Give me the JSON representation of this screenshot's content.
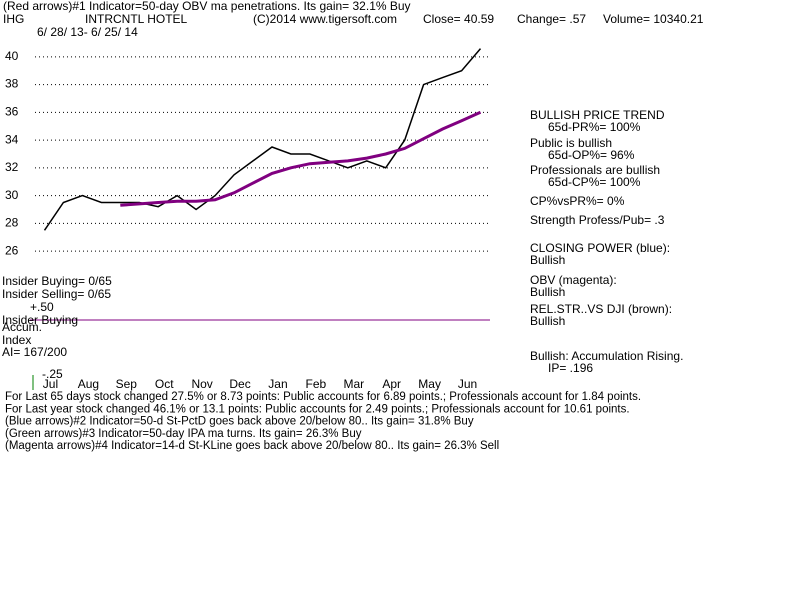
{
  "header": {
    "indicator_line": "(Red arrows)#1 Indicator=50-day OBV ma penetrations.  Its gain= 32.1% Buy",
    "symbol": "IHG",
    "name": "INTRCNTL HOTEL",
    "copyright": "(C)2014 www.tigersoft.com",
    "close": "Close=  40.59",
    "change": "Change= .57",
    "volume": "Volume= 10340.21",
    "date_range": "6/ 28/ 13- 6/ 25/ 14"
  },
  "chart_data": {
    "type": "line",
    "categories": [
      "Jul",
      null,
      "Aug",
      null,
      "Sep",
      null,
      "Oct",
      null,
      "Nov",
      null,
      "Dec",
      null,
      "Jan",
      null,
      "Feb",
      null,
      "Mar",
      null,
      "Apr",
      null,
      "May",
      null,
      "Jun",
      null
    ],
    "series": [
      {
        "color": "#000000",
        "values": [
          27.5,
          29.5,
          30,
          29.5,
          29.5,
          29.5,
          29.2,
          30,
          29,
          30,
          31.5,
          32.5,
          33.5,
          33,
          33,
          32.5,
          32,
          32.5,
          32,
          34,
          38,
          38.5,
          39,
          40.59
        ]
      },
      {
        "color": "#800080",
        "values": [
          null,
          null,
          null,
          null,
          29.3,
          29.4,
          29.5,
          29.6,
          29.6,
          29.7,
          30.2,
          30.9,
          31.6,
          32,
          32.3,
          32.4,
          32.5,
          32.7,
          33,
          33.4,
          34.1,
          34.8,
          35.4,
          36
        ]
      }
    ],
    "ylim": [
      25,
      41.5
    ],
    "yticks": [
      26,
      28,
      30,
      32,
      34,
      36,
      38,
      40
    ],
    "grid": true
  },
  "lower_panel": [
    "Insider Buying= 0/65",
    "Insider Selling= 0/65",
    "+.50",
    "Insider Buying",
    "Accum.",
    "Index",
    "AI= 167/200",
    "-.25"
  ],
  "side_panel": [
    "BULLISH PRICE TREND",
    "65d-PR%= 100%",
    "Public is bullish",
    "65d-OP%= 96%",
    "Professionals are bullish",
    "65d-CP%= 100%",
    "CP%vsPR%=  0%",
    "Strength Profess/Pub= .3",
    "CLOSING POWER (blue):",
    "Bullish",
    "OBV (magenta):",
    "Bullish",
    "REL.STR..VS DJI (brown):",
    "Bullish",
    "Bullish: Accumulation Rising.",
    "IP=  .196"
  ],
  "footer": [
    "For Last 65 days stock changed  27.5% or  8.73 points:  Public accounts for  6.89 points.;  Professionals account for  1.84 points.",
    "For Last year stock changed  46.1% or  13.1 points:  Public accounts for  2.49 points.;  Professionals account for  10.61 points.",
    "(Blue arrows)#2 Indicator=50-d St-PctD goes back above 20/below 80.. Its gain= 31.8% Buy",
    "(Green arrows)#3 Indicator=50-day IPA ma turns.  Its gain= 26.3% Buy",
    "(Magenta arrows)#4 Indicator=14-d St-KLine goes back above 20/below 80.. Its gain= 26.3% Sell"
  ]
}
